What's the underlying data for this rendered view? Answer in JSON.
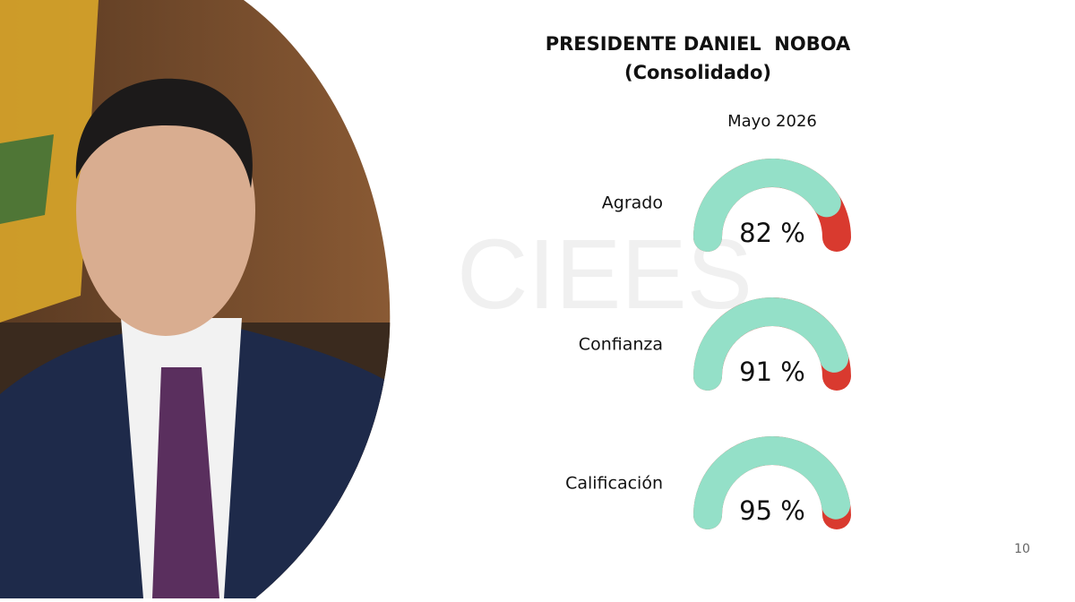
{
  "chart_data": {
    "type": "gauge",
    "title": "PRESIDENTE DANIEL  NOBOA",
    "subtitle": "(Consolidado)",
    "period": "Mayo 2026",
    "categories": [
      "Agrado",
      "Confianza",
      "Calificación"
    ],
    "values": [
      82,
      91,
      95
    ],
    "value_labels": [
      "82 %",
      "91 %",
      "95 %"
    ],
    "max": 100,
    "color": "#94e0c8",
    "remainder_color": "#d93a2f"
  },
  "watermark": "CIEES",
  "page_number": "10"
}
